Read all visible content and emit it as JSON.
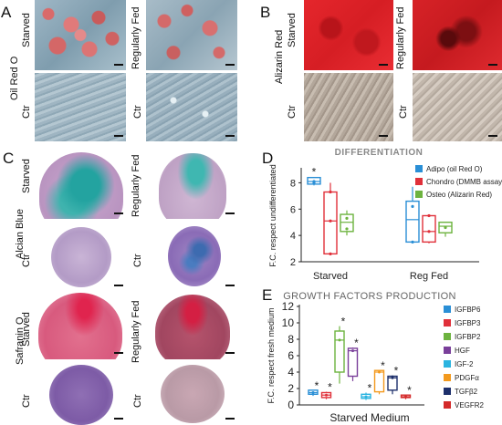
{
  "panels": {
    "A": {
      "letter": "A",
      "stain_label": "Oil Red O",
      "row1_left": "Starved",
      "row1_right": "Regularly Fed",
      "row2_left": "Ctr",
      "row2_right": "Ctr"
    },
    "B": {
      "letter": "B",
      "stain_label": "Alizarin Red",
      "row1_left": "Starved",
      "row1_right": "Regularly Fed",
      "row2_left": "Ctr",
      "row2_right": "Ctr"
    },
    "C": {
      "letter": "C",
      "stain1": "Alcian Blue",
      "stain2": "Safranin O",
      "r1_left": "Starved",
      "r1_right": "Regularly Fed",
      "r2_left": "Ctr",
      "r2_right": "Ctr",
      "r3_left": "Starved",
      "r3_right": "Regularly Fed",
      "r4_left": "Ctr",
      "r4_right": "Ctr"
    },
    "D": {
      "letter": "D"
    },
    "E": {
      "letter": "E"
    }
  },
  "chart_data": [
    {
      "id": "D",
      "type": "box",
      "title": "DIFFERENTIATION",
      "ylabel": "F.C. respect undifferentiated",
      "categories": [
        "Starved",
        "Reg Fed"
      ],
      "ylim": [
        2,
        9
      ],
      "yticks": [
        2,
        4,
        6,
        8
      ],
      "legend_placement": "top-right",
      "series": [
        {
          "name": "Adipo (oil Red O)",
          "color": "#2a8fd6",
          "boxes": [
            {
              "min": 7.8,
              "q1": 7.9,
              "median": 8.1,
              "q3": 8.4,
              "max": 8.4,
              "points": [
                8.0,
                8.1
              ],
              "star": true
            },
            {
              "min": 3.4,
              "q1": 3.5,
              "median": 5.2,
              "q3": 6.6,
              "max": 7.7,
              "points": [
                3.5,
                6.2
              ],
              "star": false
            }
          ]
        },
        {
          "name": "Chondro (DMMB assay)",
          "color": "#e0303a",
          "boxes": [
            {
              "min": 2.5,
              "q1": 2.6,
              "median": 5.1,
              "q3": 7.3,
              "max": 8.0,
              "points": [
                2.6,
                5.1,
                7.3
              ],
              "star": false
            },
            {
              "min": 3.4,
              "q1": 3.5,
              "median": 4.3,
              "q3": 5.5,
              "max": 5.6,
              "points": [
                4.3,
                5.5
              ],
              "star": false
            }
          ]
        },
        {
          "name": "Osteo (Alizarin Red)",
          "color": "#6db33f",
          "boxes": [
            {
              "min": 4.0,
              "q1": 4.3,
              "median": 5.0,
              "q3": 5.6,
              "max": 5.9,
              "points": [
                4.5,
                5.3
              ],
              "star": false
            },
            {
              "min": 3.9,
              "q1": 4.2,
              "median": 4.7,
              "q3": 5.0,
              "max": 5.0,
              "points": [
                4.6
              ],
              "star": false
            }
          ]
        }
      ]
    },
    {
      "id": "E",
      "type": "box",
      "title": "GROWTH FACTORS PRODUCTION",
      "ylabel": "F.C. respect fresh medium",
      "xlabel": "Starved Medium",
      "ylim": [
        0,
        12
      ],
      "yticks": [
        0,
        2,
        4,
        6,
        8,
        10,
        12
      ],
      "legend_placement": "right",
      "series": [
        {
          "name": "IGFBP6",
          "color": "#2a8fd6",
          "box": {
            "min": 1.1,
            "q1": 1.3,
            "median": 1.5,
            "q3": 1.8,
            "max": 1.8
          },
          "star": true
        },
        {
          "name": "IGFBP3",
          "color": "#e0303a",
          "box": {
            "min": 0.7,
            "q1": 0.9,
            "median": 1.2,
            "q3": 1.5,
            "max": 1.6
          },
          "star": true
        },
        {
          "name": "IGFBP2",
          "color": "#6db33f",
          "box": {
            "min": 2.6,
            "q1": 4.0,
            "median": 7.9,
            "q3": 9.0,
            "max": 9.6
          },
          "star": true
        },
        {
          "name": "HGF",
          "color": "#7a3f9a",
          "box": {
            "min": 2.9,
            "q1": 3.5,
            "median": 6.6,
            "q3": 6.9,
            "max": 7.0
          },
          "star": true
        },
        {
          "name": "IGF-2",
          "color": "#2bb4e0",
          "box": {
            "min": 0.6,
            "q1": 0.8,
            "median": 1.0,
            "q3": 1.3,
            "max": 1.5
          },
          "star": true
        },
        {
          "name": "PDGFα",
          "color": "#f39a1e",
          "box": {
            "min": 1.3,
            "q1": 1.6,
            "median": 4.0,
            "q3": 4.2,
            "max": 4.2
          },
          "star": true
        },
        {
          "name": "TGFβ2",
          "color": "#1d2f6b",
          "box": {
            "min": 1.3,
            "q1": 1.8,
            "median": 3.3,
            "q3": 3.5,
            "max": 3.6
          },
          "star": true
        },
        {
          "name": "VEGFR2",
          "color": "#d42a2a",
          "box": {
            "min": 0.7,
            "q1": 0.9,
            "median": 1.0,
            "q3": 1.2,
            "max": 1.2
          },
          "star": true
        }
      ]
    }
  ]
}
